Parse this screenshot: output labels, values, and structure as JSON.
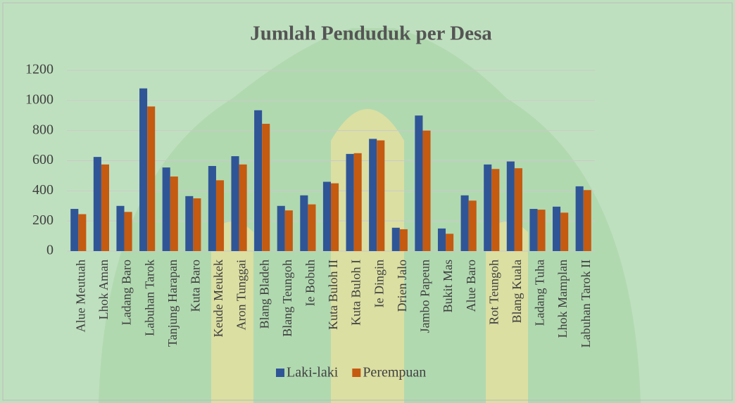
{
  "chart_data": {
    "type": "bar",
    "title": "Jumlah Penduduk per Desa",
    "categories": [
      "Alue Meutuah",
      "Lhok Aman",
      "Ladang Baro",
      "Labuhan Tarok",
      "Tanjung Harapan",
      "Kuta Baro",
      "Keude Meukek",
      "Aron Tunggai",
      "Blang Bladeh",
      "Blang Teungoh",
      "Ie Bobuh",
      "Kuta Buloh II",
      "Kuta Buloh I",
      "Ie Dingin",
      "Drien Jalo",
      "Jambo Papeun",
      "Bukit Mas",
      "Alue Baro",
      "Rot Teungoh",
      "Blang Kuala",
      "Ladang Tuha",
      "Lhok Mamplan",
      "Labuhan Tarok II"
    ],
    "series": [
      {
        "name": "Laki-laki",
        "color": "#2f5597",
        "values": [
          280,
          625,
          300,
          1080,
          555,
          365,
          565,
          630,
          935,
          300,
          370,
          460,
          645,
          745,
          155,
          900,
          150,
          370,
          575,
          595,
          280,
          295,
          430
        ]
      },
      {
        "name": "Perempuan",
        "color": "#c55a11",
        "values": [
          245,
          575,
          260,
          960,
          495,
          350,
          470,
          575,
          845,
          270,
          310,
          450,
          650,
          735,
          145,
          800,
          115,
          335,
          545,
          550,
          275,
          255,
          405
        ]
      }
    ],
    "ylim": [
      0,
      1200
    ],
    "yticks": [
      0,
      200,
      400,
      600,
      800,
      1000,
      1200
    ],
    "grid": true,
    "legend": "bottom"
  }
}
